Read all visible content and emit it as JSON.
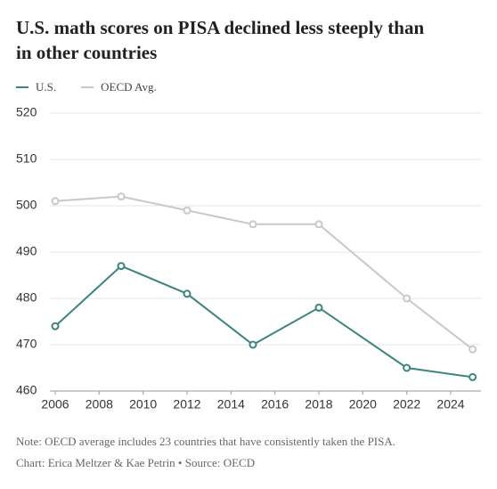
{
  "chart_data": {
    "type": "line",
    "title_lines": [
      "U.S. math scores on PISA declined less steeply than",
      "in other countries"
    ],
    "notes": [
      "Note: OECD average includes 23 countries that have consistently taken the PISA.",
      "Chart: Erica Meltzer & Kae Petrin • Source: OECD"
    ],
    "x": [
      2006,
      2009,
      2012,
      2015,
      2018,
      2022,
      2025
    ],
    "series": [
      {
        "name": "U.S.",
        "color": "#3a857e",
        "values": [
          474,
          487,
          481,
          470,
          478,
          465,
          463
        ]
      },
      {
        "name": "OECD Avg.",
        "color": "#c8c8c8",
        "values": [
          501,
          502,
          499,
          496,
          496,
          480,
          469
        ]
      }
    ],
    "xlim": [
      2006,
      2025.5
    ],
    "xticks": [
      2006,
      2008,
      2010,
      2012,
      2014,
      2016,
      2018,
      2020,
      2022,
      2024
    ],
    "ylim": [
      460,
      520
    ],
    "yticks": [
      460,
      470,
      480,
      490,
      500,
      510,
      520
    ],
    "grid": true
  }
}
